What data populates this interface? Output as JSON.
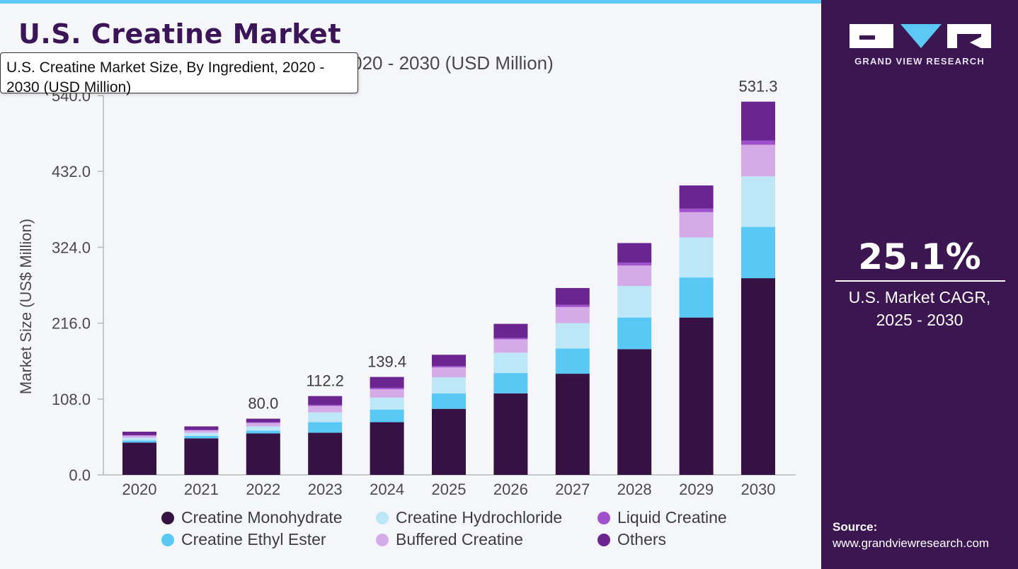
{
  "page": {
    "title": "U.S. Creatine Market",
    "subtitle": "U.S. Creatine Market Size, By Ingredient, 2020 - 2030 (USD Million)",
    "tooltip": "U.S. Creatine Market Size, By Ingredient, 2020 - 2030 (USD Million)",
    "colors": {
      "accent": "#5bc8f5",
      "brand": "#3b1650",
      "title": "#3b1557"
    }
  },
  "sidebar": {
    "logo_text": "GRAND VIEW RESEARCH",
    "cagr_value": "25.1%",
    "cagr_label_line1": "U.S. Market CAGR,",
    "cagr_label_line2": "2025 - 2030",
    "source_label": "Source:",
    "source_url": "www.grandviewresearch.com"
  },
  "chart_data": {
    "type": "bar",
    "stacked": true,
    "ylabel": "Market Size (US$ Million)",
    "xlabel": "",
    "ylim": [
      0,
      540
    ],
    "yticks": [
      "0.0",
      "108.0",
      "216.0",
      "324.0",
      "432.0",
      "540.0"
    ],
    "categories": [
      "2020",
      "2021",
      "2022",
      "2023",
      "2024",
      "2025",
      "2026",
      "2027",
      "2028",
      "2029",
      "2030"
    ],
    "series": [
      {
        "name": "Creatine Monohydrate",
        "color": "#351243",
        "values": [
          46,
          52,
          59,
          60,
          75,
          94,
          116,
          144,
          179,
          224,
          280
        ]
      },
      {
        "name": "Creatine Ethyl Ester",
        "color": "#5ac8f5",
        "values": [
          3,
          3.5,
          4,
          15,
          18,
          22,
          29,
          36,
          45,
          57,
          73
        ]
      },
      {
        "name": "Creatine Hydrochloride",
        "color": "#bde6f7",
        "values": [
          4,
          4.5,
          6,
          14,
          17,
          23,
          29,
          36,
          45,
          57,
          72
        ]
      },
      {
        "name": "Buffered Creatine",
        "color": "#d4abe7",
        "values": [
          3,
          3.5,
          5,
          9,
          12,
          14,
          19,
          23,
          29,
          36,
          45
        ]
      },
      {
        "name": "Liquid Creatine",
        "color": "#a050cc",
        "values": [
          0.5,
          0.5,
          1,
          1.5,
          2,
          2,
          2,
          3,
          4,
          5,
          6
        ]
      },
      {
        "name": "Others",
        "color": "#6a2591",
        "values": [
          5,
          5,
          5,
          12.7,
          15.4,
          16,
          20,
          24,
          28,
          33,
          55.3
        ]
      }
    ],
    "data_labels": [
      {
        "category": "2022",
        "text": "80.0"
      },
      {
        "category": "2023",
        "text": "112.2"
      },
      {
        "category": "2024",
        "text": "139.4"
      },
      {
        "category": "2030",
        "text": "531.3"
      }
    ],
    "legend": {
      "placement": "bottom",
      "rows": [
        [
          "Creatine Monohydrate",
          "Creatine Hydrochloride",
          "Liquid Creatine"
        ],
        [
          "Creatine Ethyl Ester",
          "Buffered Creatine",
          "Others"
        ]
      ]
    },
    "grid": false
  }
}
